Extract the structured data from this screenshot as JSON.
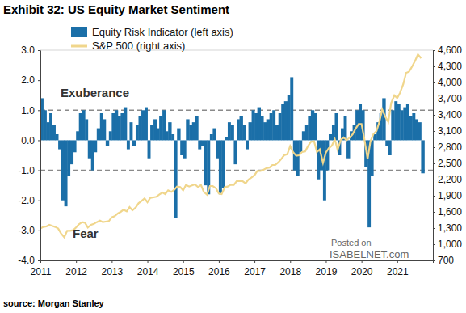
{
  "chart_data": {
    "type": "bar",
    "title": "Exhibit 32: US Equity Market Sentiment",
    "x": [
      2011.0,
      2011.08,
      2011.17,
      2011.25,
      2011.33,
      2011.42,
      2011.5,
      2011.58,
      2011.67,
      2011.75,
      2011.83,
      2011.92,
      2012.0,
      2012.08,
      2012.17,
      2012.25,
      2012.33,
      2012.42,
      2012.5,
      2012.58,
      2012.67,
      2012.75,
      2012.83,
      2012.92,
      2013.0,
      2013.08,
      2013.17,
      2013.25,
      2013.33,
      2013.42,
      2013.5,
      2013.58,
      2013.67,
      2013.75,
      2013.83,
      2013.92,
      2014.0,
      2014.08,
      2014.17,
      2014.25,
      2014.33,
      2014.42,
      2014.5,
      2014.58,
      2014.67,
      2014.75,
      2014.83,
      2014.92,
      2015.0,
      2015.08,
      2015.17,
      2015.25,
      2015.33,
      2015.42,
      2015.5,
      2015.58,
      2015.67,
      2015.75,
      2015.83,
      2015.92,
      2016.0,
      2016.08,
      2016.17,
      2016.25,
      2016.33,
      2016.42,
      2016.5,
      2016.58,
      2016.67,
      2016.75,
      2016.83,
      2016.92,
      2017.0,
      2017.08,
      2017.17,
      2017.25,
      2017.33,
      2017.42,
      2017.5,
      2017.58,
      2017.67,
      2017.75,
      2017.83,
      2017.92,
      2018.0,
      2018.08,
      2018.17,
      2018.25,
      2018.33,
      2018.42,
      2018.5,
      2018.58,
      2018.67,
      2018.75,
      2018.83,
      2018.92,
      2019.0,
      2019.08,
      2019.17,
      2019.25,
      2019.33,
      2019.42,
      2019.5,
      2019.58,
      2019.67,
      2019.75,
      2019.83,
      2019.92,
      2020.0,
      2020.08,
      2020.17,
      2020.25,
      2020.33,
      2020.42,
      2020.5,
      2020.58,
      2020.67,
      2020.75,
      2020.83,
      2020.92,
      2021.0,
      2021.08,
      2021.17,
      2021.25,
      2021.33,
      2021.42,
      2021.5,
      2021.58,
      2021.67
    ],
    "xlim": [
      2011,
      2022
    ],
    "xticks": [
      2011,
      2012,
      2013,
      2014,
      2015,
      2016,
      2017,
      2018,
      2019,
      2020,
      2021
    ],
    "ylim": [
      -4,
      3
    ],
    "yticks": [
      {
        "value": 3,
        "label": "3.0"
      },
      {
        "value": 2,
        "label": "2.0"
      },
      {
        "value": 1,
        "label": "1.0"
      },
      {
        "value": 0,
        "label": "0.0"
      },
      {
        "value": -1,
        "label": "-1.0"
      },
      {
        "value": -2,
        "label": "-2.0"
      },
      {
        "value": -3,
        "label": "-3.0"
      },
      {
        "value": -4,
        "label": "-4.0"
      }
    ],
    "y2lim": [
      700,
      4600
    ],
    "y2ticks": [
      {
        "value": 4600,
        "label": "4,600"
      },
      {
        "value": 4300,
        "label": "4,300"
      },
      {
        "value": 4000,
        "label": "4,000"
      },
      {
        "value": 3700,
        "label": "3,700"
      },
      {
        "value": 3400,
        "label": "3,400"
      },
      {
        "value": 3100,
        "label": "3,100"
      },
      {
        "value": 2800,
        "label": "2,800"
      },
      {
        "value": 2500,
        "label": "2,500"
      },
      {
        "value": 2200,
        "label": "2,200"
      },
      {
        "value": 1900,
        "label": "1,900"
      },
      {
        "value": 1600,
        "label": "1,600"
      },
      {
        "value": 1300,
        "label": "1,300"
      },
      {
        "value": 1000,
        "label": "1,000"
      },
      700
    ],
    "series": [
      {
        "name": "Equity Risk Indicator (left axis)",
        "type": "bar",
        "color": "#1b6fa8",
        "values": [
          1.4,
          1.0,
          0.6,
          0.9,
          0.5,
          0.2,
          -0.3,
          -2.0,
          -2.2,
          -1.2,
          -0.8,
          -0.4,
          0.3,
          0.9,
          1.0,
          0.7,
          -0.6,
          -1.0,
          -0.4,
          0.4,
          0.9,
          0.7,
          -0.2,
          0.3,
          0.9,
          1.0,
          0.8,
          0.9,
          1.1,
          -0.3,
          0.6,
          -0.2,
          0.5,
          0.8,
          1.0,
          1.1,
          -0.6,
          0.5,
          0.7,
          0.4,
          0.8,
          1.0,
          0.3,
          0.6,
          0.2,
          -2.6,
          0.4,
          -0.5,
          -0.6,
          0.7,
          0.5,
          0.6,
          0.8,
          -0.3,
          -0.2,
          -1.5,
          -1.8,
          0.2,
          0.4,
          -0.6,
          -1.8,
          -1.6,
          0.1,
          0.6,
          0.5,
          -0.8,
          0.7,
          0.8,
          0.5,
          -0.3,
          0.6,
          1.0,
          0.9,
          1.1,
          0.8,
          0.6,
          0.7,
          0.9,
          1.0,
          0.5,
          0.9,
          1.2,
          1.3,
          1.5,
          2.1,
          -1.0,
          -1.2,
          -0.4,
          0.3,
          0.5,
          0.8,
          1.0,
          0.9,
          -1.3,
          -1.0,
          -2.0,
          -1.0,
          0.2,
          0.5,
          0.9,
          -0.5,
          0.4,
          0.8,
          -0.6,
          0.3,
          0.5,
          1.0,
          1.2,
          1.0,
          -0.9,
          -2.9,
          -1.2,
          0.2,
          0.6,
          0.9,
          1.4,
          -0.2,
          -0.5,
          1.0,
          1.3,
          1.2,
          1.0,
          1.1,
          1.2,
          0.8,
          0.9,
          0.7,
          0.6,
          -1.1
        ]
      },
      {
        "name": "S&P 500 (right axis)",
        "type": "line",
        "axis": "y2",
        "color": "#f0d68c",
        "values": [
          1290,
          1320,
          1330,
          1360,
          1340,
          1320,
          1290,
          1200,
          1130,
          1250,
          1250,
          1260,
          1310,
          1370,
          1410,
          1400,
          1310,
          1360,
          1380,
          1410,
          1440,
          1410,
          1420,
          1430,
          1500,
          1520,
          1570,
          1600,
          1640,
          1610,
          1690,
          1630,
          1680,
          1760,
          1800,
          1850,
          1780,
          1860,
          1870,
          1880,
          1920,
          1960,
          1930,
          2000,
          1970,
          2010,
          2070,
          2060,
          2000,
          2100,
          2070,
          2090,
          2110,
          2060,
          2100,
          1970,
          1920,
          2080,
          2080,
          2040,
          1940,
          1930,
          2060,
          2070,
          2100,
          2100,
          2170,
          2170,
          2170,
          2130,
          2200,
          2240,
          2280,
          2360,
          2360,
          2380,
          2410,
          2420,
          2470,
          2470,
          2520,
          2580,
          2650,
          2670,
          2820,
          2710,
          2640,
          2650,
          2710,
          2720,
          2820,
          2900,
          2910,
          2710,
          2760,
          2510,
          2700,
          2780,
          2830,
          2950,
          2750,
          2940,
          2980,
          2930,
          2980,
          3040,
          3140,
          3230,
          3230,
          2950,
          2580,
          2910,
          3040,
          3100,
          3270,
          3500,
          3360,
          3270,
          3620,
          3760,
          3710,
          3810,
          3970,
          4180,
          4200,
          4300,
          4400,
          4520,
          4450
        ]
      }
    ],
    "reference_lines": [
      {
        "value": 1,
        "label": "Exuberance",
        "line_style": "dashed"
      },
      {
        "value": -1,
        "label": "Fear",
        "line_style": "dashed"
      }
    ],
    "annotations": [
      "Posted on",
      "ISABELNET.com"
    ],
    "source": "source: Morgan Stanley",
    "legend": "top-left"
  }
}
